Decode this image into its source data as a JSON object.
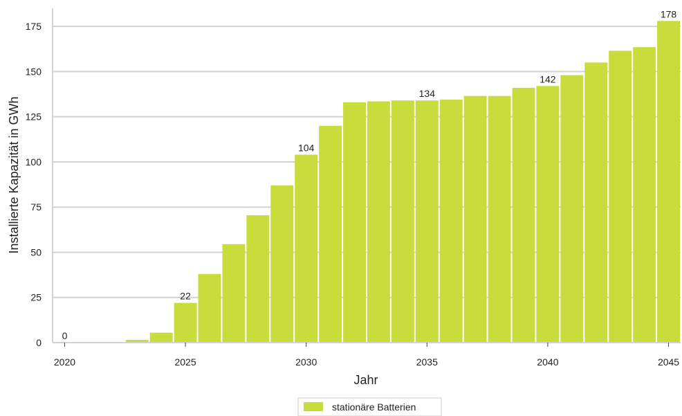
{
  "chart_data": {
    "type": "bar",
    "xlabel": "Jahr",
    "ylabel": "Installierte Kapazität in GWh",
    "ylim": [
      0,
      185
    ],
    "xlim": [
      2019.5,
      2045.5
    ],
    "yticks": [
      0,
      25,
      50,
      75,
      100,
      125,
      150,
      175
    ],
    "xticks": [
      2020,
      2025,
      2030,
      2035,
      2040,
      2045
    ],
    "grid": "horizontal",
    "legend_position": "bottom-center",
    "bar_color": "#c8dc3c",
    "series": [
      {
        "name": "stationäre Batterien",
        "x": [
          2020,
          2021,
          2022,
          2023,
          2024,
          2025,
          2026,
          2027,
          2028,
          2029,
          2030,
          2031,
          2032,
          2033,
          2034,
          2035,
          2036,
          2037,
          2038,
          2039,
          2040,
          2041,
          2042,
          2043,
          2044,
          2045
        ],
        "values": [
          0,
          0,
          0,
          1.5,
          5.5,
          22,
          38,
          54.5,
          70.5,
          87,
          104,
          120,
          133,
          133.5,
          134,
          134,
          134.5,
          136.5,
          136.5,
          141,
          142,
          148,
          155,
          161.5,
          163.5,
          178
        ]
      }
    ],
    "data_labels": [
      {
        "x": 2020,
        "text": "0"
      },
      {
        "x": 2025,
        "text": "22"
      },
      {
        "x": 2030,
        "text": "104"
      },
      {
        "x": 2035,
        "text": "134"
      },
      {
        "x": 2040,
        "text": "142"
      },
      {
        "x": 2045,
        "text": "178"
      }
    ]
  }
}
